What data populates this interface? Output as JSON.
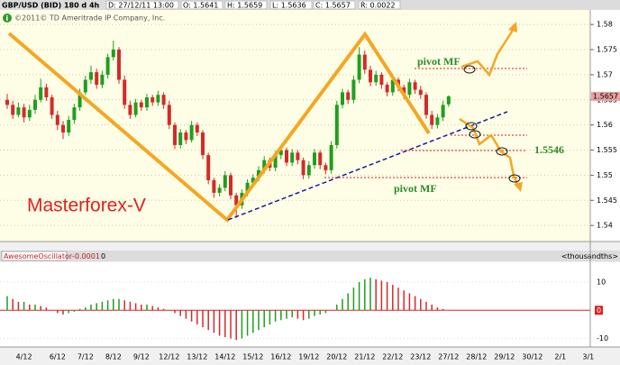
{
  "chart_data": [
    {
      "type": "candlestick",
      "title": "GBP/USD (BID) 180 d 4h",
      "info": [
        "D: 27/12/11 13:00",
        "O: 1.5641",
        "H: 1.5659",
        "L: 1.5636",
        "C: 1.5657",
        "R: 0.0022"
      ],
      "copyright": "©2011© TD Ameritrade IP Company, Inc.",
      "annotations": [
        "pivot MF",
        "1.5546",
        "pivot MF",
        "Masterforex-V"
      ],
      "up_color": "#1f9e1f",
      "down_color": "#d42a2a",
      "grid": true,
      "ylim": [
        1.5368,
        1.5829
      ],
      "yticks": [
        1.54,
        1.545,
        1.55,
        1.555,
        1.56,
        1.565,
        1.57,
        1.575,
        1.58
      ],
      "categories": [
        null,
        null,
        null,
        "4/12",
        null,
        null,
        null,
        null,
        null,
        "6/12",
        null,
        null,
        null,
        null,
        "7/12",
        null,
        null,
        null,
        null,
        "8/12",
        null,
        null,
        null,
        null,
        "9/12",
        null,
        null,
        null,
        null,
        "12/12",
        null,
        null,
        null,
        null,
        "13/12",
        null,
        null,
        null,
        null,
        "14/12",
        null,
        null,
        null,
        null,
        "15/12",
        null,
        null,
        null,
        null,
        "16/12",
        null,
        null,
        null,
        null,
        "19/12",
        null,
        null,
        null,
        null,
        "20/12",
        null,
        null,
        null,
        null,
        "21/12",
        null,
        null,
        null,
        null,
        "22/12",
        null,
        null,
        null,
        null,
        "23/12",
        null,
        null,
        null,
        null,
        "27/12",
        null,
        null,
        null,
        null,
        "28/12",
        null,
        null,
        null,
        null,
        "29/12",
        null,
        null,
        null,
        null,
        "30/12",
        null,
        null,
        null,
        null,
        "2/1",
        null,
        null,
        null,
        null,
        "3/1"
      ],
      "ohlc": [
        [
          1.565,
          1.5662,
          1.5632,
          1.564
        ],
        [
          1.564,
          1.5648,
          1.5612,
          1.562
        ],
        [
          1.562,
          1.5645,
          1.5615,
          1.5635
        ],
        [
          1.5635,
          1.5642,
          1.5605,
          1.5615
        ],
        [
          1.5615,
          1.564,
          1.5608,
          1.563
        ],
        [
          1.563,
          1.566,
          1.5622,
          1.565
        ],
        [
          1.565,
          1.5692,
          1.5645,
          1.5675
        ],
        [
          1.5675,
          1.5682,
          1.5648,
          1.5655
        ],
        [
          1.5655,
          1.566,
          1.5612,
          1.562
        ],
        [
          1.562,
          1.5628,
          1.559,
          1.56
        ],
        [
          1.56,
          1.5608,
          1.5572,
          1.5585
        ],
        [
          1.5585,
          1.5618,
          1.5578,
          1.561
        ],
        [
          1.561,
          1.5642,
          1.5602,
          1.5635
        ],
        [
          1.5635,
          1.5672,
          1.5628,
          1.5665
        ],
        [
          1.5665,
          1.5698,
          1.566,
          1.569
        ],
        [
          1.569,
          1.5718,
          1.5682,
          1.5705
        ],
        [
          1.5705,
          1.5712,
          1.5672,
          1.568
        ],
        [
          1.568,
          1.5708,
          1.5673,
          1.57
        ],
        [
          1.57,
          1.5742,
          1.5692,
          1.5735
        ],
        [
          1.5735,
          1.5768,
          1.5728,
          1.575
        ],
        [
          1.575,
          1.5755,
          1.5682,
          1.569
        ],
        [
          1.569,
          1.5698,
          1.5632,
          1.564
        ],
        [
          1.564,
          1.5648,
          1.5612,
          1.562
        ],
        [
          1.562,
          1.5652,
          1.5615,
          1.5645
        ],
        [
          1.5645,
          1.565,
          1.5628,
          1.5635
        ],
        [
          1.5635,
          1.5662,
          1.5628,
          1.5655
        ],
        [
          1.5655,
          1.566,
          1.5638,
          1.5645
        ],
        [
          1.5645,
          1.5668,
          1.5638,
          1.566
        ],
        [
          1.566,
          1.5665,
          1.5632,
          1.564
        ],
        [
          1.564,
          1.5648,
          1.5592,
          1.56
        ],
        [
          1.56,
          1.5605,
          1.5552,
          1.556
        ],
        [
          1.556,
          1.5592,
          1.5553,
          1.5585
        ],
        [
          1.5585,
          1.559,
          1.5562,
          1.557
        ],
        [
          1.557,
          1.5608,
          1.5565,
          1.56
        ],
        [
          1.56,
          1.5605,
          1.5578,
          1.5585
        ],
        [
          1.5585,
          1.559,
          1.5532,
          1.554
        ],
        [
          1.554,
          1.5545,
          1.5482,
          1.549
        ],
        [
          1.549,
          1.5495,
          1.5455,
          1.5465
        ],
        [
          1.5465,
          1.5482,
          1.5458,
          1.5475
        ],
        [
          1.5475,
          1.5508,
          1.5468,
          1.55
        ],
        [
          1.55,
          1.5505,
          1.5452,
          1.546
        ],
        [
          1.546,
          1.5465,
          1.5415,
          1.544
        ],
        [
          1.544,
          1.5472,
          1.5433,
          1.5465
        ],
        [
          1.5465,
          1.5492,
          1.5458,
          1.5485
        ],
        [
          1.5485,
          1.5502,
          1.5478,
          1.5495
        ],
        [
          1.5495,
          1.5518,
          1.5488,
          1.551
        ],
        [
          1.551,
          1.5538,
          1.5503,
          1.553
        ],
        [
          1.553,
          1.5535,
          1.5508,
          1.5515
        ],
        [
          1.5515,
          1.5548,
          1.5508,
          1.554
        ],
        [
          1.554,
          1.556,
          1.5532,
          1.555
        ],
        [
          1.555,
          1.5555,
          1.5518,
          1.5525
        ],
        [
          1.5525,
          1.5552,
          1.5518,
          1.5545
        ],
        [
          1.5545,
          1.555,
          1.5522,
          1.553
        ],
        [
          1.553,
          1.5535,
          1.5492,
          1.55
        ],
        [
          1.55,
          1.5528,
          1.5493,
          1.552
        ],
        [
          1.552,
          1.5552,
          1.5513,
          1.5545
        ],
        [
          1.5545,
          1.555,
          1.5512,
          1.552
        ],
        [
          1.552,
          1.5525,
          1.5502,
          1.551
        ],
        [
          1.551,
          1.5568,
          1.5503,
          1.556
        ],
        [
          1.556,
          1.5648,
          1.5553,
          1.564
        ],
        [
          1.564,
          1.5672,
          1.5633,
          1.5665
        ],
        [
          1.5665,
          1.567,
          1.5642,
          1.565
        ],
        [
          1.565,
          1.5698,
          1.5643,
          1.569
        ],
        [
          1.569,
          1.5755,
          1.5683,
          1.574
        ],
        [
          1.574,
          1.5748,
          1.5702,
          1.571
        ],
        [
          1.571,
          1.5718,
          1.5677,
          1.5685
        ],
        [
          1.5685,
          1.5708,
          1.5678,
          1.57
        ],
        [
          1.57,
          1.5705,
          1.5672,
          1.568
        ],
        [
          1.568,
          1.5685,
          1.5657,
          1.5665
        ],
        [
          1.5665,
          1.5698,
          1.5658,
          1.569
        ],
        [
          1.569,
          1.5695,
          1.5667,
          1.5675
        ],
        [
          1.5675,
          1.568,
          1.5652,
          1.566
        ],
        [
          1.566,
          1.5692,
          1.5653,
          1.5685
        ],
        [
          1.5685,
          1.569,
          1.5662,
          1.567
        ],
        [
          1.567,
          1.5678,
          1.5652,
          1.566
        ],
        [
          1.566,
          1.5665,
          1.5612,
          1.562
        ],
        [
          1.562,
          1.5628,
          1.5592,
          1.56
        ],
        [
          1.56,
          1.5622,
          1.5593,
          1.5615
        ],
        [
          1.5615,
          1.5648,
          1.5608,
          1.564
        ],
        [
          1.5641,
          1.5659,
          1.5636,
          1.5657
        ],
        null,
        null,
        null,
        null,
        null,
        null,
        null,
        null,
        null,
        null,
        null,
        null,
        null,
        null,
        null,
        null,
        null,
        null,
        null,
        null,
        null,
        null,
        null,
        null,
        null
      ]
    },
    {
      "type": "bar",
      "title": "AwesomeOscillator",
      "readout": "-0.0001",
      "setting": "0",
      "units": "<thousandths>",
      "up_color": "#1f9e1f",
      "down_color": "#d42a2a",
      "zero_color": "#e02020",
      "ylim": [
        -13,
        17
      ],
      "yticks": [
        -10,
        0,
        10
      ],
      "values": [
        5,
        4,
        3,
        3,
        2,
        2,
        1.5,
        1,
        0,
        -1,
        -1.5,
        -1,
        -0.5,
        0.5,
        1,
        2,
        2.5,
        3,
        3.5,
        4,
        4,
        3.5,
        3,
        2.5,
        2,
        2,
        1.5,
        1,
        0.5,
        0,
        -1,
        -2,
        -3,
        -4,
        -5,
        -6,
        -7,
        -8,
        -9,
        -9.5,
        -10,
        -10.5,
        -10,
        -9,
        -8,
        -7,
        -6,
        -5,
        -4,
        -3.5,
        -3,
        -2.5,
        -3,
        -3.5,
        -3,
        -2,
        -1.5,
        -1,
        0,
        2,
        4,
        6,
        8,
        10,
        11,
        11.5,
        11,
        10.5,
        10,
        9,
        8,
        7,
        6,
        5,
        4,
        3,
        2,
        1,
        0.5,
        0,
        null,
        null,
        null,
        null,
        null,
        null,
        null,
        null,
        null,
        null,
        null,
        null,
        null,
        null,
        null,
        null,
        null,
        null,
        null,
        null,
        null,
        null,
        null,
        null,
        null
      ]
    }
  ]
}
